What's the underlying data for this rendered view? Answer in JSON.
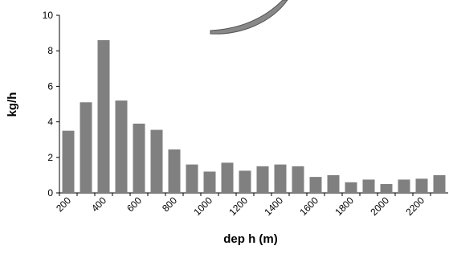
{
  "chart_data": {
    "type": "bar",
    "x_label": "dep h (m)",
    "y_label": "kg/h",
    "categories": [
      "200",
      null,
      "400",
      null,
      "600",
      null,
      "800",
      null,
      "1000",
      null,
      "1200",
      null,
      "1400",
      null,
      "1600",
      null,
      "1800",
      null,
      "2000",
      null,
      "2200",
      null
    ],
    "values": [
      3.5,
      5.1,
      8.6,
      5.2,
      3.9,
      3.55,
      2.45,
      1.6,
      1.2,
      1.7,
      1.25,
      1.5,
      1.6,
      1.5,
      0.9,
      1.0,
      0.6,
      0.75,
      0.5,
      0.75,
      0.8,
      1.0
    ],
    "color": "#808080",
    "ylim": [
      0,
      10
    ],
    "yticks": [
      0,
      2,
      4,
      6,
      8,
      10
    ]
  }
}
